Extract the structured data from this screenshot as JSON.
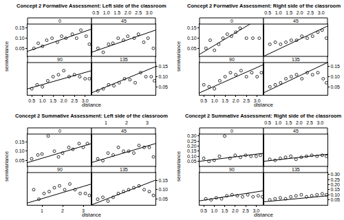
{
  "chart_data": [
    {
      "type": "scatter",
      "title": "Concept 2 Formative Assessment: Left side of the classroom",
      "x_label": "distance",
      "y_label": "semivariance",
      "marker": "circle-open",
      "grid": false,
      "xlim": [
        0.3,
        3.3
      ],
      "xticks": [
        0.5,
        {
          "value": 1,
          "label": "1.0"
        },
        1.5,
        {
          "value": 2,
          "label": "2.0"
        },
        2.5,
        {
          "value": 3,
          "label": "3.0"
        }
      ],
      "ylim": [
        0.01,
        0.17
      ],
      "yticks": [
        0.05,
        {
          "value": 0.1,
          "label": "0.10"
        },
        0.15
      ],
      "series": [
        {
          "name": "0",
          "x": [
            0.6,
            0.8,
            1.0,
            1.2,
            1.45,
            1.7,
            1.9,
            2.1,
            2.4,
            2.6,
            2.8,
            3.05,
            3.2
          ],
          "values": [
            0.05,
            0.075,
            0.06,
            0.09,
            0.1,
            0.08,
            0.11,
            0.1,
            0.12,
            0.1,
            0.14,
            0.11,
            0.07
          ],
          "fit": {
            "x": [
              0.3,
              3.3
            ],
            "values": [
              0.035,
              0.145
            ]
          }
        },
        {
          "name": "45",
          "x": [
            0.6,
            0.85,
            1.1,
            1.3,
            1.55,
            1.8,
            2.0,
            2.3,
            2.5,
            2.75,
            2.95,
            3.2
          ],
          "values": [
            0.05,
            0.03,
            0.07,
            0.075,
            0.1,
            0.09,
            0.11,
            0.1,
            0.12,
            0.08,
            0.1,
            0.05
          ],
          "fit": {
            "x": [
              0.3,
              3.3
            ],
            "values": [
              0.03,
              0.14
            ]
          }
        },
        {
          "name": "90",
          "x": [
            0.5,
            0.75,
            1.0,
            1.25,
            1.5,
            1.75,
            2.0,
            2.25,
            2.5,
            2.75,
            3.0,
            3.2
          ],
          "values": [
            0.04,
            0.06,
            0.05,
            0.08,
            0.1,
            0.11,
            0.13,
            0.1,
            0.11,
            0.1,
            0.09,
            0.09
          ],
          "fit": {
            "x": [
              0.3,
              3.3
            ],
            "values": [
              0.04,
              0.13
            ]
          }
        },
        {
          "name": "135",
          "x": [
            0.6,
            0.85,
            1.1,
            1.35,
            1.6,
            1.85,
            2.1,
            2.35,
            2.6,
            2.85,
            3.1,
            3.25
          ],
          "values": [
            0.03,
            0.04,
            0.06,
            0.055,
            0.07,
            0.09,
            0.085,
            0.07,
            0.12,
            0.1,
            0.1,
            0.08
          ],
          "fit": {
            "x": [
              0.3,
              3.3
            ],
            "values": [
              0.02,
              0.15
            ]
          }
        }
      ]
    },
    {
      "type": "scatter",
      "title": "Concept 2 Formative Assessment: Right side of the classroom",
      "x_label": "distance",
      "y_label": "semivariance",
      "marker": "circle-open",
      "grid": false,
      "xlim": [
        0.3,
        3.3
      ],
      "xticks": [
        0.5,
        {
          "value": 1,
          "label": "1.0"
        },
        1.5,
        {
          "value": 2,
          "label": "2.0"
        },
        2.5,
        {
          "value": 3,
          "label": "3.0"
        }
      ],
      "ylim": [
        0.01,
        0.17
      ],
      "yticks": [
        0.05,
        {
          "value": 0.1,
          "label": "0.10"
        },
        0.15
      ],
      "series": [
        {
          "name": "0",
          "x": [
            0.6,
            0.8,
            1.0,
            1.2,
            1.4,
            1.6,
            1.8,
            2.0,
            2.2,
            2.5,
            2.8,
            3.1
          ],
          "values": [
            0.05,
            0.09,
            0.04,
            0.07,
            0.1,
            0.12,
            0.11,
            0.13,
            0.15,
            0.1,
            0.1,
            0.1
          ],
          "fit": {
            "x": [
              0.3,
              3.3
            ],
            "values": [
              0.02,
              0.21
            ]
          }
        },
        {
          "name": "45",
          "x": [
            0.6,
            0.85,
            1.1,
            1.35,
            1.6,
            1.85,
            2.1,
            2.35,
            2.6,
            2.85,
            3.05,
            3.25
          ],
          "values": [
            0.07,
            0.08,
            0.07,
            0.08,
            0.09,
            0.09,
            0.11,
            0.1,
            0.11,
            0.13,
            0.14,
            0.1
          ],
          "fit": {
            "x": [
              0.3,
              3.3
            ],
            "values": [
              0.01,
              0.16
            ]
          }
        },
        {
          "name": "90",
          "x": [
            0.5,
            0.75,
            1.0,
            1.25,
            1.5,
            1.75,
            2.0,
            2.25,
            2.5,
            2.75,
            3.0,
            3.2
          ],
          "values": [
            0.06,
            0.05,
            0.04,
            0.08,
            0.1,
            0.12,
            0.11,
            0.13,
            0.1,
            0.12,
            0.1,
            0.12
          ],
          "fit": {
            "x": [
              0.3,
              3.3
            ],
            "values": [
              0.02,
              0.16
            ]
          }
        },
        {
          "name": "135",
          "x": [
            0.6,
            0.85,
            1.1,
            1.35,
            1.6,
            1.85,
            2.1,
            2.35,
            2.6,
            2.85,
            3.1,
            3.25
          ],
          "values": [
            0.05,
            0.06,
            0.07,
            0.09,
            0.1,
            0.11,
            0.09,
            0.12,
            0.11,
            0.12,
            0.09,
            0.07
          ],
          "fit": {
            "x": [
              0.3,
              3.3
            ],
            "values": [
              0.02,
              0.17
            ]
          }
        }
      ]
    },
    {
      "type": "scatter",
      "title": "Concept 2 Summative Assessment: Left side of the classroom",
      "x_label": "distance",
      "y_label": "semivariance",
      "marker": "circle-open",
      "grid": false,
      "xlim": [
        0.3,
        3.4
      ],
      "xticks": [
        1,
        2,
        3
      ],
      "ylim": [
        0.02,
        0.19
      ],
      "yticks": [
        0.05,
        {
          "value": 0.1,
          "label": "0.10"
        },
        0.15
      ],
      "series": [
        {
          "name": "0",
          "x": [
            0.5,
            0.8,
            1.0,
            1.3,
            1.6,
            1.8,
            2.0,
            2.3,
            2.5,
            2.8,
            3.0,
            3.2
          ],
          "values": [
            0.06,
            0.08,
            0.085,
            0.18,
            0.1,
            0.07,
            0.09,
            0.12,
            0.11,
            0.14,
            0.12,
            0.14
          ],
          "fit": {
            "x": [
              0.3,
              3.4
            ],
            "values": [
              0.04,
              0.14
            ]
          }
        },
        {
          "name": "45",
          "x": [
            0.6,
            0.85,
            1.1,
            1.35,
            1.6,
            1.85,
            2.1,
            2.35,
            2.6,
            2.85,
            3.1,
            3.3
          ],
          "values": [
            0.06,
            0.05,
            0.09,
            0.08,
            0.12,
            0.1,
            0.1,
            0.09,
            0.13,
            0.12,
            0.12,
            0.07
          ],
          "fit": {
            "x": [
              0.3,
              3.4
            ],
            "values": [
              0.04,
              0.14
            ]
          }
        },
        {
          "name": "90",
          "x": [
            0.6,
            0.85,
            1.1,
            1.35,
            1.6,
            1.85,
            2.1,
            2.35,
            2.6,
            2.85,
            3.1,
            3.3
          ],
          "values": [
            0.1,
            0.05,
            0.08,
            0.09,
            0.11,
            0.12,
            0.1,
            0.13,
            0.1,
            0.08,
            0.08,
            0.07
          ],
          "fit": {
            "x": [
              0.3,
              3.4
            ],
            "values": [
              0.03,
              0.13
            ]
          }
        },
        {
          "name": "135",
          "x": [
            0.6,
            0.85,
            1.1,
            1.35,
            1.6,
            1.85,
            2.1,
            2.35,
            2.6,
            2.85,
            3.1,
            3.3
          ],
          "values": [
            0.05,
            0.06,
            0.04,
            0.06,
            0.08,
            0.09,
            0.1,
            0.11,
            0.12,
            0.1,
            0.09,
            0.07
          ],
          "fit": {
            "x": [
              0.3,
              3.4
            ],
            "values": [
              0.02,
              0.15
            ]
          }
        }
      ]
    },
    {
      "type": "scatter",
      "title": "Concept 2 Summative Assessment: Right side of the classroom",
      "x_label": "distance",
      "y_label": "semivariance",
      "marker": "circle-open",
      "grid": false,
      "xlim": [
        0.3,
        3.35
      ],
      "xticks": [
        0.5,
        {
          "value": 1,
          "label": "1.0"
        },
        1.5,
        {
          "value": 2,
          "label": "2.0"
        },
        2.5,
        {
          "value": 3,
          "label": "3.0"
        }
      ],
      "ylim": [
        0.0,
        0.32
      ],
      "yticks": [
        0.05,
        {
          "value": 0.1,
          "label": "0.10"
        },
        0.15,
        {
          "value": 0.2,
          "label": "0.20"
        },
        0.25,
        {
          "value": 0.3,
          "label": "0.30"
        }
      ],
      "series": [
        {
          "name": "0",
          "x": [
            0.5,
            0.75,
            1.0,
            1.25,
            1.5,
            1.75,
            2.0,
            2.25,
            2.5,
            2.75,
            3.0,
            3.2
          ],
          "values": [
            0.08,
            0.05,
            0.06,
            0.1,
            0.3,
            0.08,
            0.11,
            0.09,
            0.11,
            0.1,
            0.1,
            0.11
          ],
          "fit": {
            "x": [
              0.3,
              3.35
            ],
            "values": [
              0.05,
              0.13
            ]
          }
        },
        {
          "name": "45",
          "x": [
            0.6,
            0.85,
            1.1,
            1.35,
            1.6,
            1.85,
            2.1,
            2.35,
            2.6,
            2.85,
            3.1,
            3.3
          ],
          "values": [
            0.07,
            0.06,
            0.08,
            0.09,
            0.1,
            0.07,
            0.09,
            0.1,
            0.11,
            0.1,
            0.11,
            0.1
          ],
          "fit": {
            "x": [
              0.3,
              3.35
            ],
            "values": [
              0.05,
              0.12
            ]
          }
        },
        {
          "name": "90",
          "x": [
            0.6,
            0.85,
            1.1,
            1.35,
            1.6,
            1.85,
            2.1,
            2.35,
            2.6,
            2.85,
            3.1,
            3.3
          ],
          "values": [
            0.06,
            0.05,
            0.07,
            0.06,
            0.09,
            0.1,
            0.09,
            0.08,
            0.1,
            0.08,
            0.09,
            0.08
          ],
          "fit": {
            "x": [
              0.3,
              3.35
            ],
            "values": [
              0.04,
              0.14
            ]
          }
        },
        {
          "name": "135",
          "x": [
            0.6,
            0.85,
            1.1,
            1.35,
            1.6,
            1.85,
            2.1,
            2.35,
            2.6,
            2.85,
            3.1,
            3.3
          ],
          "values": [
            0.05,
            0.06,
            0.07,
            0.06,
            0.08,
            0.09,
            0.1,
            0.08,
            0.09,
            0.1,
            0.11,
            0.1
          ],
          "fit": {
            "x": [
              0.3,
              3.35
            ],
            "values": [
              0.03,
              0.09
            ]
          }
        }
      ]
    }
  ]
}
